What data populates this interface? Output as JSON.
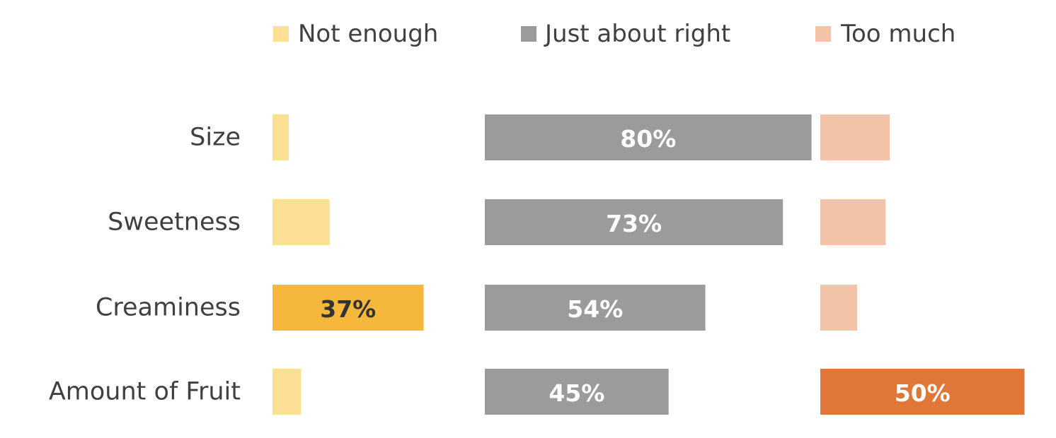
{
  "chart_data": {
    "type": "bar",
    "orientation": "horizontal",
    "layout": "side-by-side-panels",
    "categories": [
      "Size",
      "Sweetness",
      "Creaminess",
      "Amount of Fruit"
    ],
    "xlim": [
      0,
      100
    ],
    "grid": false,
    "legend_position": "top",
    "series": [
      {
        "name": "Not enough",
        "values": [
          4,
          14,
          37,
          7
        ],
        "color": "#FDDF95",
        "highlight_color": "#F6B83C",
        "highlighted": [
          false,
          false,
          true,
          false
        ],
        "labels": [
          "",
          "",
          "37%",
          ""
        ]
      },
      {
        "name": "Just about right",
        "values": [
          80,
          73,
          54,
          45
        ],
        "color": "#9B9B9B",
        "highlight_color": "#9B9B9B",
        "highlighted": [
          true,
          true,
          true,
          true
        ],
        "labels": [
          "80%",
          "73%",
          "54%",
          "45%"
        ]
      },
      {
        "name": "Too much",
        "values": [
          17,
          16,
          9,
          50
        ],
        "color": "#F2C3A6",
        "highlight_color": "#E07638",
        "highlighted": [
          false,
          false,
          false,
          true
        ],
        "labels": [
          "",
          "",
          "",
          "50%"
        ]
      }
    ],
    "label_colors": [
      "#333333",
      "#ffffff",
      "#ffffff"
    ]
  }
}
